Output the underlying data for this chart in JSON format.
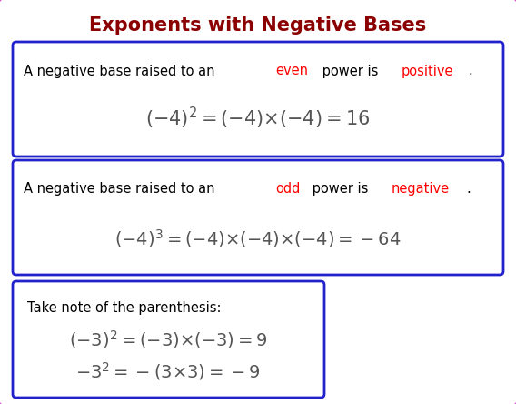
{
  "title": "Exponents with Negative Bases",
  "title_color": "#8B0000",
  "title_fontsize": 15,
  "bg_color": "#FFFFFF",
  "outer_border_color": "#CC44CC",
  "blue_border": "#2222CC",
  "black": "#000000",
  "red": "#FF0000",
  "gray": "#555555",
  "box1_text_parts": [
    [
      "A negative base raised to an ",
      "#000000"
    ],
    [
      "even",
      "#FF0000"
    ],
    [
      " power is ",
      "#000000"
    ],
    [
      "positive",
      "#FF0000"
    ],
    [
      ".",
      "#000000"
    ]
  ],
  "box1_formula": "$(-4)^{2}=(-4){\\times}(-4)=16$",
  "box2_text_parts": [
    [
      "A negative base raised to an ",
      "#000000"
    ],
    [
      "odd",
      "#FF0000"
    ],
    [
      " power is ",
      "#000000"
    ],
    [
      "negative",
      "#FF0000"
    ],
    [
      ".",
      "#000000"
    ]
  ],
  "box2_formula": "$(-4)^{3}=(-4){\\times}(-4){\\times}(-4)=-64$",
  "box3_label": "Take note of the parenthesis:",
  "box3_formula1": "$(-3)^{2}=(-3){\\times}(-3)=9$",
  "box3_formula2": "$-3^{2}=-(3{\\times}3)=-9$"
}
